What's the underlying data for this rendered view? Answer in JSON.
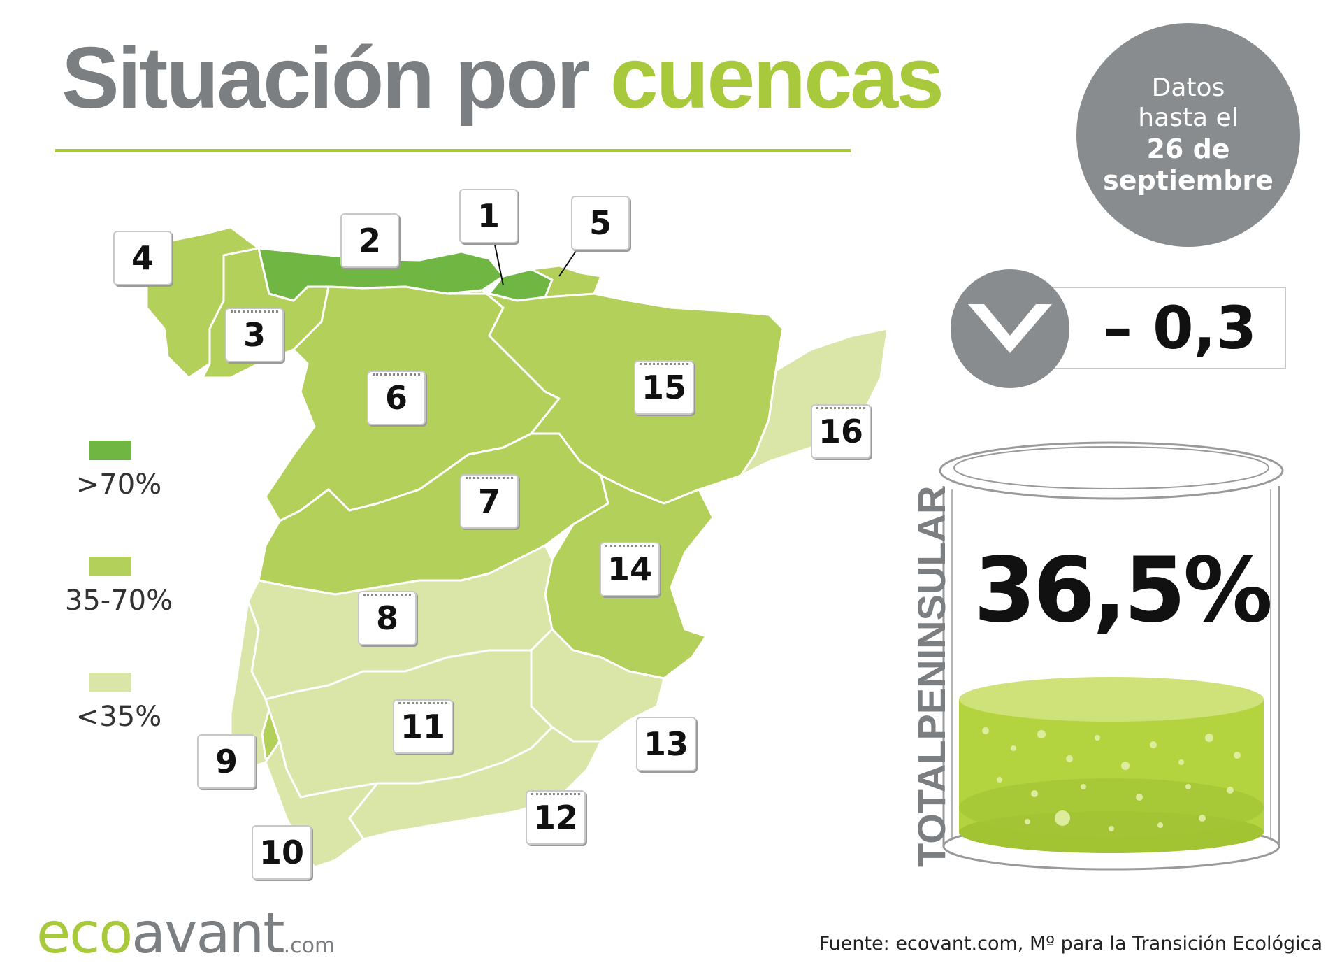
{
  "title": {
    "part1": "Situación por",
    "part2": "cuencas"
  },
  "date_badge": {
    "line1": "Datos",
    "line2": "hasta el",
    "line3": "26 de",
    "line4": "septiembre"
  },
  "legend": [
    {
      "label": ">70%",
      "color": "#6fb642"
    },
    {
      "label": "35-70%",
      "color": "#b3d15a"
    },
    {
      "label": "<35%",
      "color": "#d9e6a8"
    }
  ],
  "basins": [
    {
      "id": "1",
      "category": ">70%"
    },
    {
      "id": "2",
      "category": ">70%"
    },
    {
      "id": "3",
      "category": "35-70%"
    },
    {
      "id": "4",
      "category": "35-70%"
    },
    {
      "id": "5",
      "category": "35-70%"
    },
    {
      "id": "6",
      "category": "35-70%"
    },
    {
      "id": "7",
      "category": "35-70%"
    },
    {
      "id": "8",
      "category": "<35%"
    },
    {
      "id": "9",
      "category": "35-70%"
    },
    {
      "id": "10",
      "category": "<35%"
    },
    {
      "id": "11",
      "category": "<35%"
    },
    {
      "id": "12",
      "category": "<35%"
    },
    {
      "id": "13",
      "category": "<35%"
    },
    {
      "id": "14",
      "category": "35-70%"
    },
    {
      "id": "15",
      "category": "35-70%"
    },
    {
      "id": "16",
      "category": "<35%"
    }
  ],
  "delta": {
    "value": "– 0,3",
    "direction": "down-arrow-icon"
  },
  "total": {
    "label": "TOTALPENINSULAR",
    "value": "36,5%",
    "fill_fraction": 0.365
  },
  "footer": {
    "logo_eco": "eco",
    "logo_avant": "avant",
    "logo_com": ".com",
    "source": "Fuente: ecovant.com, Mº para la Transición Ecológica"
  },
  "colors": {
    "accent": "#a8c93b",
    "grey": "#7b7f82",
    "dark_green": "#6fb642",
    "mid_green": "#b3d15a",
    "light_green": "#d9e6a8"
  }
}
